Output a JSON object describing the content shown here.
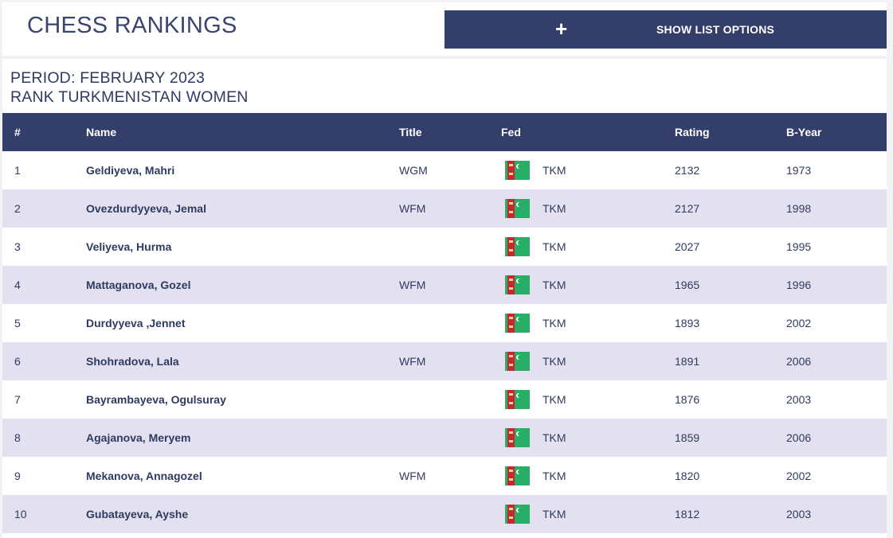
{
  "header": {
    "title": "CHESS RANKINGS",
    "options_icon": "+",
    "options_label": "SHOW LIST OPTIONS"
  },
  "period": {
    "line1": "PERIOD: FEBRUARY 2023",
    "line2": "RANK TURKMENISTAN WOMEN"
  },
  "table": {
    "columns": [
      "#",
      "Name",
      "Title",
      "Fed",
      "Rating",
      "B-Year"
    ],
    "rows": [
      {
        "rank": "1",
        "name": "Geldiyeva, Mahri",
        "title": "WGM",
        "fed": "TKM",
        "rating": "2132",
        "byear": "1973"
      },
      {
        "rank": "2",
        "name": "Ovezdurdyyeva, Jemal",
        "title": "WFM",
        "fed": "TKM",
        "rating": "2127",
        "byear": "1998"
      },
      {
        "rank": "3",
        "name": "Veliyeva, Hurma",
        "title": "",
        "fed": "TKM",
        "rating": "2027",
        "byear": "1995"
      },
      {
        "rank": "4",
        "name": "Mattaganova, Gozel",
        "title": "WFM",
        "fed": "TKM",
        "rating": "1965",
        "byear": "1996"
      },
      {
        "rank": "5",
        "name": "Durdyyeva ,Jennet",
        "title": "",
        "fed": "TKM",
        "rating": "1893",
        "byear": "2002"
      },
      {
        "rank": "6",
        "name": "Shohradova, Lala",
        "title": "WFM",
        "fed": "TKM",
        "rating": "1891",
        "byear": "2006"
      },
      {
        "rank": "7",
        "name": "Bayrambayeva, Ogulsuray",
        "title": "",
        "fed": "TKM",
        "rating": "1876",
        "byear": "2003"
      },
      {
        "rank": "8",
        "name": "Agajanova, Meryem",
        "title": "",
        "fed": "TKM",
        "rating": "1859",
        "byear": "2006"
      },
      {
        "rank": "9",
        "name": "Mekanova, Annagozel",
        "title": "WFM",
        "fed": "TKM",
        "rating": "1820",
        "byear": "2002"
      },
      {
        "rank": "10",
        "name": "Gubatayeva, Ayshe",
        "title": "",
        "fed": "TKM",
        "rating": "1812",
        "byear": "2003"
      }
    ]
  },
  "icons": {
    "flag": "turkmenistan-flag-icon"
  },
  "colors": {
    "header_bg": "#343e6a",
    "row_alt_bg": "#e3e1f0",
    "text": "#2f3a62",
    "flag_green": "#28ae66",
    "flag_red": "#c8272f"
  }
}
